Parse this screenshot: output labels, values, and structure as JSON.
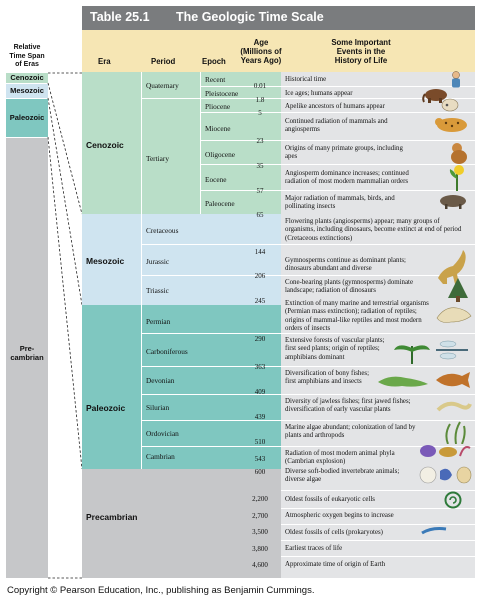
{
  "table_number": "Table 25.1",
  "table_title": "The Geologic Time Scale",
  "header": {
    "era": "Era",
    "period": "Period",
    "epoch": "Epoch",
    "age_line1": "Age",
    "age_line2": "(Millions of",
    "age_line3": "Years Ago)",
    "events_line1": "Some Important",
    "events_line2": "Events in the",
    "events_line3": "History of Life"
  },
  "left_column": {
    "title_line1": "Relative",
    "title_line2": "Time Span",
    "title_line3": "of Eras",
    "cenozoic": "Cenozoic",
    "mesozoic": "Mesozoic",
    "paleozoic": "Paleozoic",
    "precambrian_line1": "Pre-",
    "precambrian_line2": "cambrian"
  },
  "eras": {
    "cenozoic": "Cenozoic",
    "mesozoic": "Mesozoic",
    "paleozoic": "Paleozoic",
    "precambrian": "Precambrian"
  },
  "periods": {
    "quaternary": "Quaternary",
    "tertiary": "Tertiary",
    "cretaceous": "Cretaceous",
    "jurassic": "Jurassic",
    "triassic": "Triassic",
    "permian": "Permian",
    "carboniferous": "Carboniferous",
    "devonian": "Devonian",
    "silurian": "Silurian",
    "ordovician": "Ordovician",
    "cambrian": "Cambrian"
  },
  "epochs": {
    "recent": "Recent",
    "pleistocene": "Pleistocene",
    "pliocene": "Pliocene",
    "miocene": "Miocene",
    "oligocene": "Oligocene",
    "eocene": "Eocene",
    "paleocene": "Paleocene"
  },
  "ages": {
    "a001": "0.01",
    "a18": "1.8",
    "a5": "5",
    "a23": "23",
    "a35": "35",
    "a57": "57",
    "a65": "65",
    "a144": "144",
    "a206": "206",
    "a245": "245",
    "a290": "290",
    "a363": "363",
    "a409": "409",
    "a439": "439",
    "a510": "510",
    "a543": "543",
    "a600": "600",
    "a2200": "2,200",
    "a2700": "2,700",
    "a3500": "3,500",
    "a3800": "3,800",
    "a4600": "4,600"
  },
  "events": {
    "recent": "Historical time",
    "pleistocene": "Ice ages; humans appear",
    "pliocene": "Apelike ancestors of humans appear",
    "miocene": "Continued radiation of mammals and angiosperms",
    "oligocene": "Origins of many primate groups, including apes",
    "eocene": "Angiosperm dominance increases; continued radiation of most modern mammalian orders",
    "paleocene": "Major radiation of mammals, birds, and pollinating insects",
    "cretaceous": "Flowering plants (angiosperms) appear; many groups of organisms, including dinosaurs, become extinct at end of period (Cretaceous extinctions)",
    "jurassic": "Gymnosperms continue as dominant plants; dinosaurs abundant and diverse",
    "triassic": "Cone-bearing plants (gymnosperms) dominate landscape; radiation of dinosaurs",
    "permian": "Extinction of many marine and terrestrial organisms (Permian mass extinction); radiation of reptiles; origins of mammal-like reptiles and most modern orders of insects",
    "carboniferous": "Extensive forests of vascular plants; first seed plants; origin of reptiles; amphibians dominant",
    "devonian": "Diversification of bony fishes; first amphibians and insects",
    "silurian": "Diversity of jawless fishes; first jawed fishes; diversification of early vascular plants",
    "ordovician": "Marine algae abundant; colonization of land by plants and arthropods",
    "cambrian": "Radiation of most modern animal phyla (Cambrian explosion)",
    "e600": "Diverse soft-bodied invertebrate animals; diverse algae",
    "e2200": "Oldest fossils of eukaryotic cells",
    "e2700": "Atmospheric oxygen begins to increase",
    "e3500": "Oldest fossils of cells (prokaryotes)",
    "e3800": "Earliest traces of life",
    "e4600": "Approximate time of origin of Earth"
  },
  "colors": {
    "title_bar": "#7a7c7e",
    "header": "#f6e6b4",
    "cenozoic": "#b9dec8",
    "mesozoic": "#cfe4f0",
    "paleozoic": "#7fc7c0",
    "precambrian": "#c6c7c9",
    "events_panel": "#e3e4e6"
  },
  "copyright": "Copyright © Pearson Education, Inc., publishing as Benjamin Cummings."
}
